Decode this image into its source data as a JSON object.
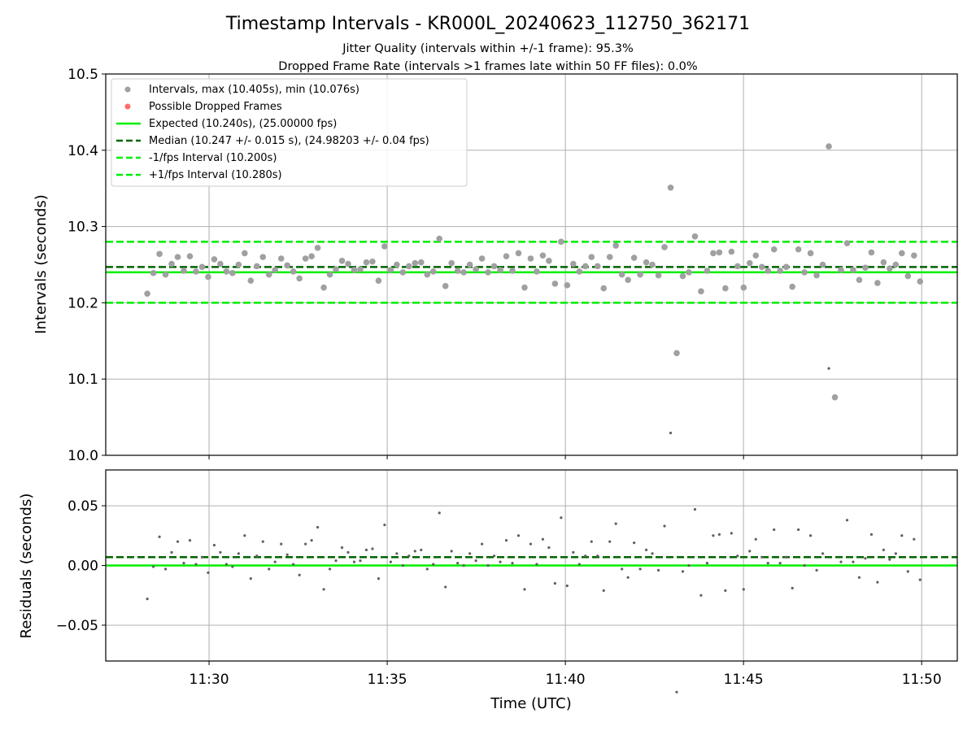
{
  "chart_data": {
    "title": "Timestamp Intervals - KR000L_20240623_112750_362171",
    "subtitle_lines": [
      "Jitter Quality (intervals within +/-1 frame): 95.3%",
      "Dropped Frame Rate (intervals >1 frames late within 50 FF files): 0.0%"
    ],
    "xlabel": "Time (UTC)",
    "xlim": [
      "11:27:06",
      "11:51:00"
    ],
    "x_ticks": [
      {
        "t": "11:30:00",
        "label": "11:30"
      },
      {
        "t": "11:35:00",
        "label": "11:35"
      },
      {
        "t": "11:40:00",
        "label": "11:40"
      },
      {
        "t": "11:45:00",
        "label": "11:45"
      },
      {
        "t": "11:50:00",
        "label": "11:50"
      }
    ],
    "grid": true,
    "colors": {
      "points": "#a0a0a0",
      "residual_points": "#606060",
      "expected": "#00ee00",
      "median": "#006400",
      "fps_interval": "#00ee00",
      "dropped": "#ff6b6b"
    },
    "top": {
      "type": "scatter",
      "ylabel": "Intervals (seconds)",
      "ylim": [
        10.0,
        10.5
      ],
      "yticks": [
        "10.0",
        "10.1",
        "10.2",
        "10.3",
        "10.4",
        "10.5"
      ],
      "legend_position": "upper-left",
      "legend": [
        {
          "label": "Intervals, max (10.405s), min (10.076s)",
          "marker": "dot-gray"
        },
        {
          "label": "Possible Dropped Frames",
          "marker": "dot-red"
        },
        {
          "label": "Expected (10.240s), (25.00000 fps)",
          "marker": "solid-green"
        },
        {
          "label": "Median (10.247 +/- 0.015 s), (24.98203 +/- 0.04 fps)",
          "marker": "dash-darkgreen"
        },
        {
          "label": "-1/fps Interval (10.200s)",
          "marker": "dash-green"
        },
        {
          "label": "+1/fps Interval (10.280s)",
          "marker": "dash-green"
        }
      ],
      "hlines": [
        {
          "name": "expected",
          "y": 10.24,
          "style": "solid"
        },
        {
          "name": "median",
          "y": 10.247,
          "style": "dashed"
        },
        {
          "name": "minus-fps",
          "y": 10.2,
          "style": "dashed"
        },
        {
          "name": "plus-fps",
          "y": 10.28,
          "style": "dashed"
        }
      ]
    },
    "bottom": {
      "type": "scatter",
      "ylabel": "Residuals (seconds)",
      "ylim": [
        -0.08,
        0.08
      ],
      "yticks": [
        "−0.05",
        "0.00",
        "0.05"
      ],
      "yticks_values": [
        -0.05,
        0.0,
        0.05
      ],
      "hlines": [
        {
          "name": "median-offset",
          "y": 0.007,
          "style": "dashed"
        },
        {
          "name": "zero",
          "y": 0.0,
          "style": "solid"
        }
      ]
    },
    "series": [
      {
        "x_start": "11:28:16",
        "x_step_seconds": 10.247,
        "y": [
          10.212,
          10.239,
          10.264,
          10.237,
          10.251,
          10.26,
          10.242,
          10.261,
          10.241,
          10.247,
          10.234,
          10.257,
          10.251,
          10.241,
          10.239,
          10.25,
          10.265,
          10.229,
          10.248,
          10.26,
          10.237,
          10.243,
          10.258,
          10.249,
          10.241,
          10.232,
          10.258,
          10.261,
          10.272,
          10.22,
          10.237,
          10.244,
          10.255,
          10.251,
          10.243,
          10.244,
          10.253,
          10.254,
          10.229,
          10.274,
          10.243,
          10.25,
          10.24,
          10.248,
          10.252,
          10.253,
          10.237,
          10.241,
          10.284,
          10.222,
          10.252,
          10.242,
          10.24,
          10.25,
          10.244,
          10.258,
          10.24,
          10.248,
          10.243,
          10.261,
          10.242,
          10.265,
          10.22,
          10.258,
          10.241,
          10.262,
          10.255,
          10.225,
          10.28,
          10.223,
          10.251,
          10.241,
          10.248,
          10.26,
          10.248,
          10.219,
          10.26,
          10.275,
          10.237,
          10.23,
          10.259,
          10.237,
          10.253,
          10.25,
          10.236,
          10.273,
          10.351,
          10.134,
          10.235,
          10.24,
          10.287,
          10.215,
          10.242,
          10.265,
          10.266,
          10.219,
          10.267,
          10.248,
          10.22,
          10.252,
          10.262,
          10.247,
          10.242,
          10.27,
          10.242,
          10.247,
          10.221,
          10.27,
          10.24,
          10.265,
          10.236,
          10.25,
          10.405,
          10.076,
          10.243,
          10.278,
          10.243,
          10.23,
          10.246,
          10.266,
          10.226,
          10.253,
          10.245,
          10.25,
          10.265,
          10.235,
          10.262,
          10.228
        ],
        "dropped_frames": []
      }
    ]
  }
}
